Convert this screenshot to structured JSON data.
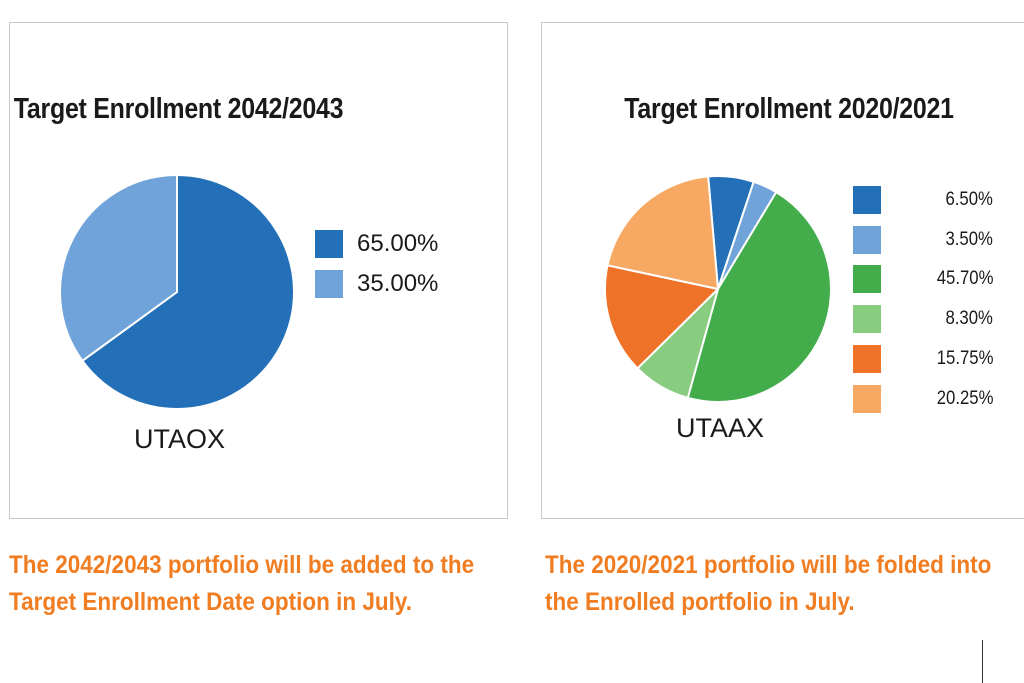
{
  "chart_data": [
    {
      "type": "pie",
      "title": "Target Enrollment 2042/2043",
      "label": "UTAOX",
      "categories": [
        "65.00%",
        "35.00%"
      ],
      "values": [
        65.0,
        35.0
      ],
      "colors": [
        "#2470b8",
        "#6fa3d9"
      ],
      "legend_position": "right"
    },
    {
      "type": "pie",
      "title": "Target Enrollment 2020/2021",
      "label": "UTAAX",
      "categories": [
        "6.50%",
        "3.50%",
        "45.70%",
        "8.30%",
        "15.75%",
        "20.25%"
      ],
      "values": [
        6.5,
        3.5,
        45.7,
        8.3,
        15.75,
        20.25
      ],
      "colors": [
        "#2470b8",
        "#6fa3d9",
        "#42ad4a",
        "#88cc80",
        "#ee7227",
        "#f7a863"
      ],
      "legend_position": "right"
    }
  ],
  "captions": {
    "left": "The 2042/2043 portfolio will be added to the Target Enrollment Date option in July.",
    "right": "The 2020/2021 portfolio will be folded into the Enrolled portfolio in July."
  }
}
